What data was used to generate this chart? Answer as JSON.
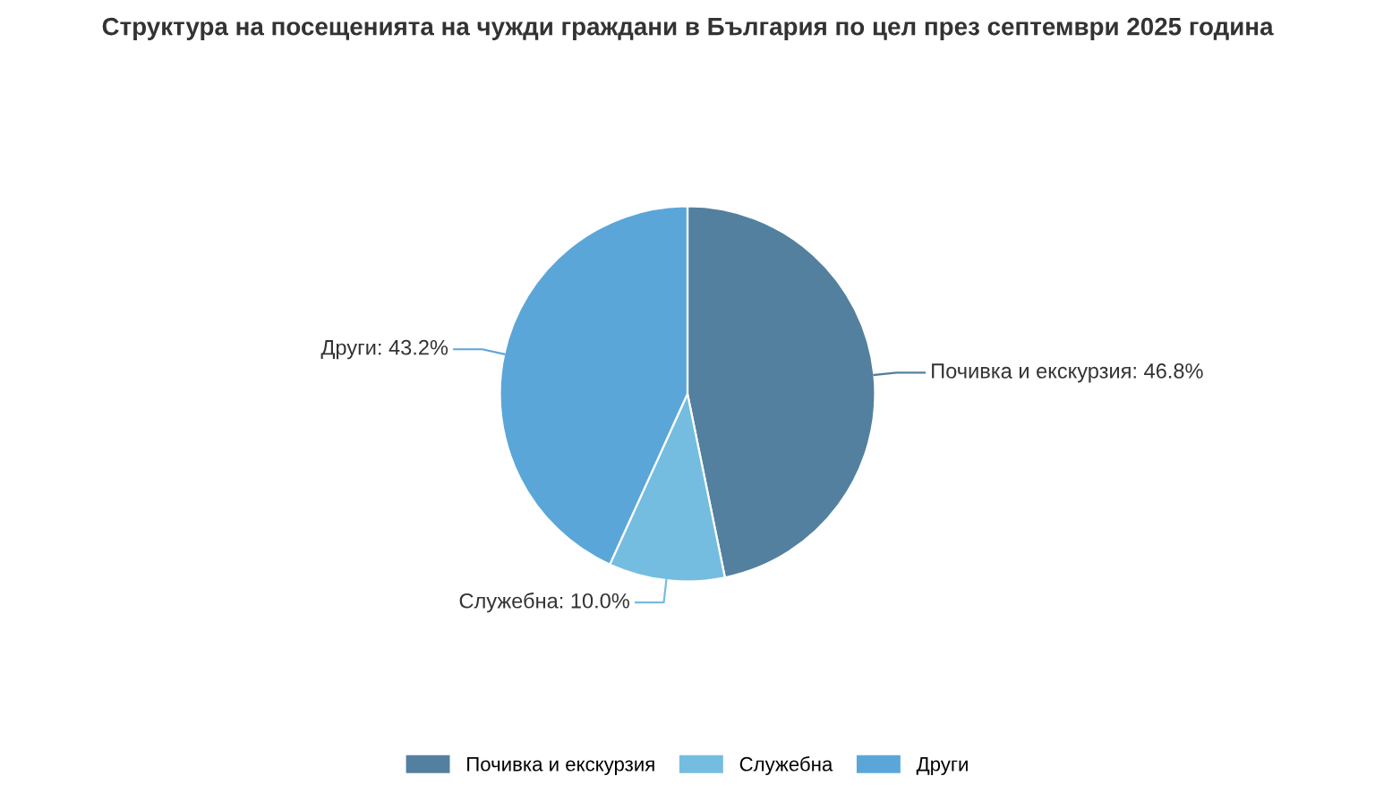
{
  "chart_data": {
    "type": "pie",
    "title": "Структура на посещенията на чужди граждани в България по цел през септември 2025 година",
    "categories": [
      "Почивка и екскурзия",
      "Служебна",
      "Други"
    ],
    "values": [
      46.8,
      10.0,
      43.2
    ],
    "value_labels": [
      "Почивка и екскурзия: 46.8%",
      "Служебна: 10.0%",
      "Други: 43.2%"
    ],
    "colors": [
      "#53809f",
      "#74bde0",
      "#5ba6d8"
    ],
    "legend": "bottom"
  }
}
